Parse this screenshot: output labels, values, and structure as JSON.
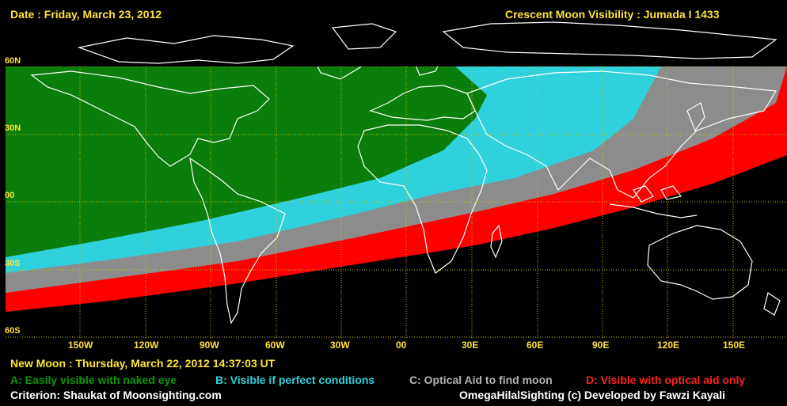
{
  "header": {
    "date_text": "Date : Friday, March 23, 2012",
    "title_text": "Crescent Moon Visibility : Jumada I  1433"
  },
  "map": {
    "lat_labels": [
      "60N",
      "30N",
      "00",
      "30S",
      "60S"
    ],
    "lon_labels": [
      "150W",
      "120W",
      "90W",
      "60W",
      "30W",
      "00",
      "30E",
      "60E",
      "90E",
      "120E",
      "150E"
    ],
    "colors": {
      "zone_a": "#0a7d0a",
      "zone_b": "#2fd2dc",
      "zone_c": "#8c8c8c",
      "zone_d": "#ff0000",
      "grid": "#c8c800",
      "coast": "#ffffff"
    }
  },
  "footer": {
    "new_moon_text": "New Moon : Thursday, March 22, 2012  14:37:03  UT",
    "legend": [
      {
        "label": "A: Easily visible with naked eye",
        "color": "#0a9a0a"
      },
      {
        "label": "B: Visible if perfect conditions",
        "color": "#2fd2dc"
      },
      {
        "label": "C: Optical Aid to find moon",
        "color": "#b4b4b4"
      },
      {
        "label": "D: Visible with optical aid only",
        "color": "#ff2020"
      }
    ],
    "criterion_text": "Criterion: Shaukat of Moonsighting.com",
    "credit_text": "OmegaHilalSighting  (c)  Developed by Fawzi Kayali"
  }
}
